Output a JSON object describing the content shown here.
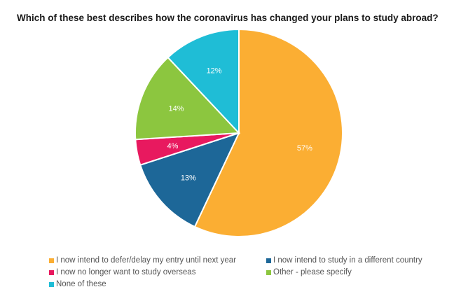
{
  "chart_data": {
    "type": "pie",
    "title": "Which of these best describes how the coronavirus has changed your plans to study abroad?",
    "slices": [
      {
        "label": "I now intend to defer/delay my entry until next year",
        "value": 57,
        "value_label": "57%",
        "color": "#FBAE33"
      },
      {
        "label": "I now intend to study in a different country",
        "value": 13,
        "value_label": "13%",
        "color": "#1D6798"
      },
      {
        "label": "I now no longer want to study overseas",
        "value": 4,
        "value_label": "4%",
        "color": "#E8195F"
      },
      {
        "label": "Other - please specify",
        "value": 14,
        "value_label": "14%",
        "color": "#8CC63F"
      },
      {
        "label": "None of these",
        "value": 12,
        "value_label": "12%",
        "color": "#1FBDD6"
      }
    ],
    "legend_position": "bottom"
  }
}
